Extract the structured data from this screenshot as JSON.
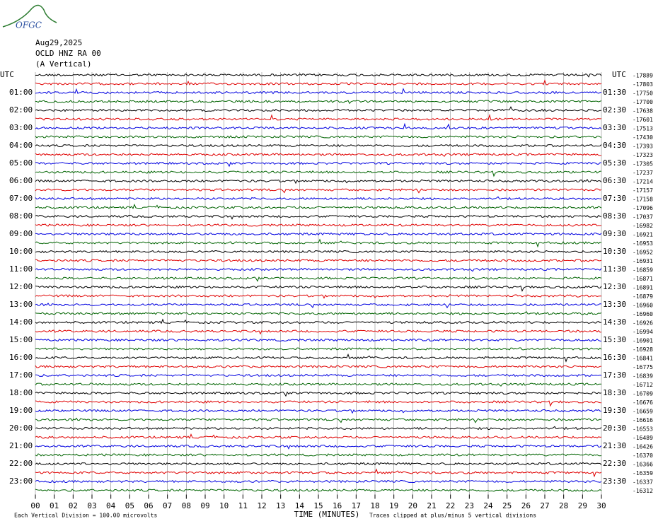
{
  "header": {
    "logo": "OFGC",
    "date": "Aug29,2025",
    "station": "OCLD HNZ RA 00",
    "component": "(A Vertical)"
  },
  "left_labels": [
    "UTC",
    "01:00",
    "02:00",
    "03:00",
    "04:00",
    "05:00",
    "06:00",
    "07:00",
    "08:00",
    "09:00",
    "10:00",
    "11:00",
    "12:00",
    "13:00",
    "14:00",
    "15:00",
    "16:00",
    "17:00",
    "18:00",
    "19:00",
    "20:00",
    "21:00",
    "22:00",
    "23:00"
  ],
  "right_labels": [
    "UTC",
    "01:30",
    "02:30",
    "03:30",
    "04:30",
    "05:30",
    "06:30",
    "07:30",
    "08:30",
    "09:30",
    "10:30",
    "11:30",
    "12:30",
    "13:30",
    "14:30",
    "15:30",
    "16:30",
    "17:30",
    "18:30",
    "19:30",
    "20:30",
    "21:30",
    "22:30",
    "23:30"
  ],
  "right_values": [
    -17889,
    -17803,
    -17750,
    -17700,
    -17638,
    -17601,
    -17513,
    -17430,
    -17393,
    -17323,
    -17305,
    -17237,
    -17214,
    -17157,
    -17158,
    -17096,
    -17037,
    -16982,
    -16921,
    -16953,
    -16952,
    -16931,
    -16859,
    -16871,
    -16891,
    -16879,
    -16960,
    -16960,
    -16926,
    -16994,
    -16901,
    -16928,
    -16841,
    -16775,
    -16839,
    -16712,
    -16709,
    -16676,
    -16659,
    -16616,
    -16553,
    -16489,
    -16426,
    -16370,
    -16366,
    -16359,
    -16337,
    -16312
  ],
  "x_ticks": [
    "00",
    "01",
    "02",
    "03",
    "04",
    "05",
    "06",
    "07",
    "08",
    "09",
    "10",
    "11",
    "12",
    "13",
    "14",
    "15",
    "16",
    "17",
    "18",
    "19",
    "20",
    "21",
    "22",
    "23",
    "24",
    "25",
    "26",
    "27",
    "28",
    "29",
    "30"
  ],
  "footer": {
    "scale": "Each Vertical Division =  100.00 microvolts",
    "x_label": "TIME (MINUTES)",
    "clip_note": "Traces clipped at plus/minus 5 vertical divisions"
  }
}
